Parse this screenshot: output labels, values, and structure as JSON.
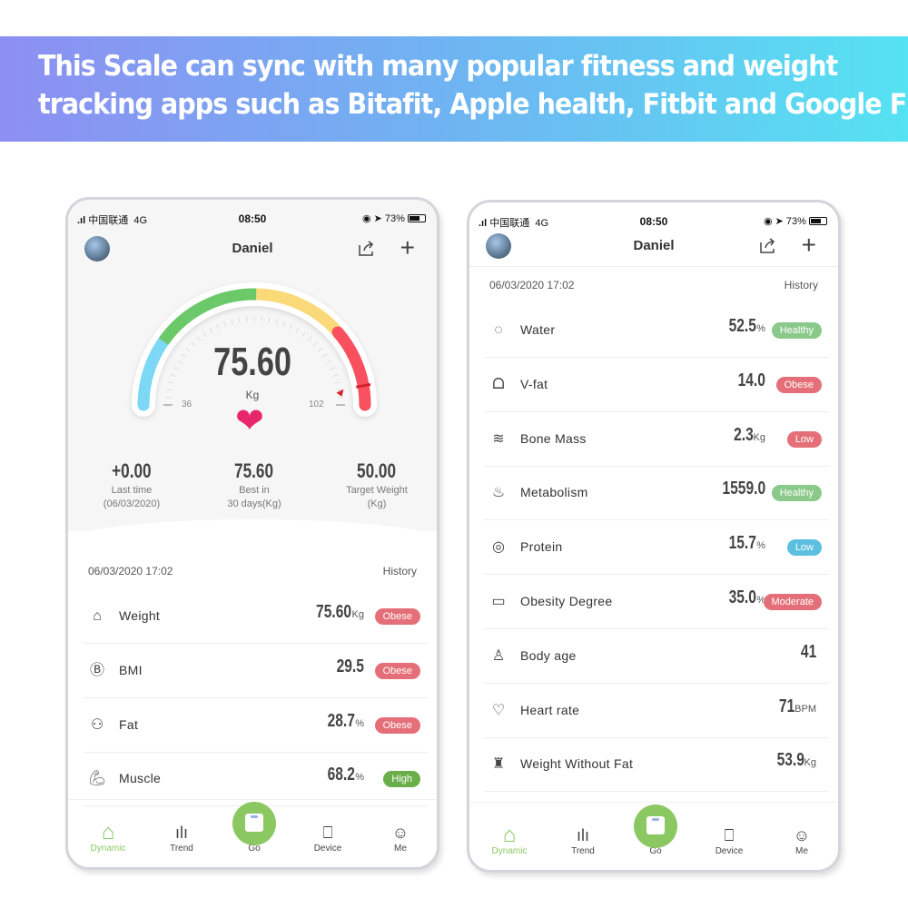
{
  "banner": {
    "line1": "This Scale can sync with many popular fitness and weight",
    "line2": "tracking apps such as Bitafit, Apple health, Fitbit and Google Fit."
  },
  "status": {
    "carrier": "中国联通",
    "network": "4G",
    "time": "08:50",
    "battery": "73%"
  },
  "user": {
    "name": "Daniel"
  },
  "gauge": {
    "value": "75.60",
    "unit": "Kg",
    "min_label": "36",
    "max_label": "102",
    "min": 36,
    "max": 102,
    "reading": 75.6,
    "colors": {
      "low": "#7dd8f5",
      "normal": "#6cc96a",
      "over": "#f9d978",
      "obese": "#f8505e"
    }
  },
  "stats": [
    {
      "value": "+0.00",
      "label1": "Last time",
      "label2": "(06/03/2020)"
    },
    {
      "value": "75.60",
      "label1": "Best in",
      "label2": "30 days(Kg)"
    },
    {
      "value": "50.00",
      "label1": "Target Weight",
      "label2": "(Kg)"
    }
  ],
  "record": {
    "date": "06/03/2020 17:02",
    "history": "History"
  },
  "metrics_left": [
    {
      "icon": "scale-icon",
      "glyph": "⌂",
      "label": "Weight",
      "value": "75.60",
      "unit": "Kg",
      "badge": "Obese",
      "color": "#e46f78"
    },
    {
      "icon": "bmi-icon",
      "glyph": "Ⓑ",
      "label": "BMI",
      "value": "29.5",
      "unit": "",
      "badge": "Obese",
      "color": "#e46f78"
    },
    {
      "icon": "fat-icon",
      "glyph": "⚇",
      "label": "Fat",
      "value": "28.7",
      "unit": "%",
      "badge": "Obese",
      "color": "#e46f78"
    },
    {
      "icon": "muscle-icon",
      "glyph": "💪︎",
      "label": "Muscle",
      "value": "68.2",
      "unit": "%",
      "badge": "High",
      "color": "#6aae4a"
    }
  ],
  "metrics_right": [
    {
      "icon": "water-drop-icon",
      "glyph": "◌",
      "label": "Water",
      "value": "52.5",
      "unit": "%",
      "badge": "Healthy",
      "color": "#8bc98a"
    },
    {
      "icon": "lungs-icon",
      "glyph": "ᗝ",
      "label": "V-fat",
      "value": "14.0",
      "unit": "",
      "badge": "Obese",
      "color": "#e46f78"
    },
    {
      "icon": "bone-icon",
      "glyph": "≋",
      "label": "Bone Mass",
      "value": "2.3",
      "unit": "Kg",
      "badge": "Low",
      "color": "#e46f78"
    },
    {
      "icon": "flame-icon",
      "glyph": "♨",
      "label": "Metabolism",
      "value": "1559.0",
      "unit": "",
      "badge": "Healthy",
      "color": "#8bc98a"
    },
    {
      "icon": "protein-icon",
      "glyph": "◎",
      "label": "Protein",
      "value": "15.7",
      "unit": "%",
      "badge": "Low",
      "color": "#5bbfe0"
    },
    {
      "icon": "obesity-icon",
      "glyph": "▭",
      "label": "Obesity Degree",
      "value": "35.0",
      "unit": "%",
      "badge": "Moderate",
      "color": "#e46f78"
    },
    {
      "icon": "person-icon",
      "glyph": "♙",
      "label": "Body age",
      "value": "41",
      "unit": "",
      "badge": "",
      "color": ""
    },
    {
      "icon": "heart-rate-icon",
      "glyph": "♡",
      "label": "Heart rate",
      "value": "71",
      "unit": "BPM",
      "badge": "",
      "color": ""
    },
    {
      "icon": "body-icon",
      "glyph": "♜",
      "label": "Weight Without Fat",
      "value": "53.9",
      "unit": "Kg",
      "badge": "",
      "color": ""
    }
  ],
  "nav": [
    {
      "label": "Dynamic",
      "glyph": "⌂",
      "icon": "home-icon",
      "active": true
    },
    {
      "label": "Trend",
      "glyph": "ılı",
      "icon": "trend-icon",
      "active": false
    },
    {
      "label": "Go",
      "glyph": "",
      "icon": "scale-icon",
      "active": false
    },
    {
      "label": "Device",
      "glyph": "⎕",
      "icon": "bag-icon",
      "active": false
    },
    {
      "label": "Me",
      "glyph": "☺",
      "icon": "smiley-icon",
      "active": false
    }
  ],
  "accent": "#8cc862"
}
